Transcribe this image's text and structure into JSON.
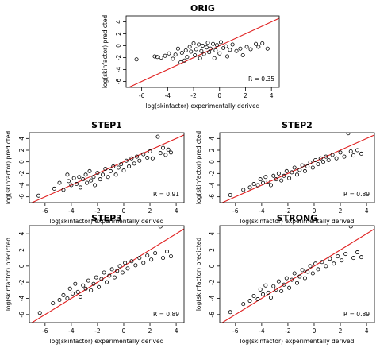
{
  "chart_data": [
    {
      "type": "scatter",
      "title": "ORIG",
      "xlabel": "log(skinfactor) experimentally derived",
      "ylabel": "log(skinfactor) predicted",
      "annotation": "R = 0.35",
      "xticks": [
        -6,
        -4,
        -2,
        0,
        2,
        4
      ],
      "yticks": [
        -6,
        -4,
        -2,
        0,
        2,
        4
      ],
      "xlim": [
        -7.2,
        4.6
      ],
      "ylim": [
        -7.0,
        5.0
      ],
      "reference_line": {
        "type": "identity",
        "color": "#e02020"
      },
      "points": [
        [
          -6.4,
          -2.3
        ],
        [
          -5.0,
          -1.8
        ],
        [
          -4.8,
          -1.9
        ],
        [
          -4.5,
          -2.0
        ],
        [
          -4.2,
          -1.7
        ],
        [
          -3.9,
          -1.3
        ],
        [
          -3.6,
          -2.2
        ],
        [
          -3.4,
          -1.5
        ],
        [
          -3.2,
          -0.5
        ],
        [
          -3.0,
          -2.8
        ],
        [
          -2.9,
          -1.2
        ],
        [
          -2.7,
          -2.5
        ],
        [
          -2.6,
          -0.8
        ],
        [
          -2.5,
          -1.9
        ],
        [
          -2.3,
          -0.2
        ],
        [
          -2.2,
          -1.0
        ],
        [
          -2.0,
          0.4
        ],
        [
          -1.9,
          -1.6
        ],
        [
          -1.8,
          -0.6
        ],
        [
          -1.6,
          0.2
        ],
        [
          -1.5,
          -2.1
        ],
        [
          -1.4,
          -0.9
        ],
        [
          -1.3,
          0.0
        ],
        [
          -1.2,
          -1.4
        ],
        [
          -1.0,
          -0.3
        ],
        [
          -0.9,
          0.5
        ],
        [
          -0.8,
          -1.1
        ],
        [
          -0.7,
          -0.5
        ],
        [
          -0.5,
          0.3
        ],
        [
          -0.4,
          -2.1
        ],
        [
          -0.3,
          -0.8
        ],
        [
          -0.2,
          0.1
        ],
        [
          0.0,
          -1.3
        ],
        [
          0.1,
          0.6
        ],
        [
          0.3,
          -0.4
        ],
        [
          0.5,
          -0.1
        ],
        [
          0.6,
          -1.8
        ],
        [
          0.8,
          -0.7
        ],
        [
          1.0,
          0.2
        ],
        [
          1.3,
          -0.9
        ],
        [
          1.6,
          -0.5
        ],
        [
          1.8,
          -1.6
        ],
        [
          2.1,
          -0.2
        ],
        [
          2.4,
          -0.6
        ],
        [
          2.8,
          0.3
        ],
        [
          3.0,
          -0.2
        ],
        [
          3.3,
          0.4
        ],
        [
          3.7,
          -0.5
        ]
      ]
    },
    {
      "type": "scatter",
      "title": "STEP1",
      "xlabel": "log(skinfactor) experimentally derived",
      "ylabel": "log(skinfactor) predicted",
      "annotation": "R = 0.91",
      "xticks": [
        -6,
        -4,
        -2,
        0,
        2,
        4
      ],
      "yticks": [
        -6,
        -4,
        -2,
        0,
        2,
        4
      ],
      "xlim": [
        -7.2,
        4.6
      ],
      "ylim": [
        -7.0,
        5.0
      ],
      "reference_line": {
        "type": "identity",
        "color": "#e02020"
      },
      "points": [
        [
          -6.5,
          -5.8
        ],
        [
          -5.3,
          -4.6
        ],
        [
          -4.9,
          -3.6
        ],
        [
          -4.6,
          -4.8
        ],
        [
          -4.3,
          -2.2
        ],
        [
          -4.2,
          -3.3
        ],
        [
          -4.0,
          -4.0
        ],
        [
          -3.8,
          -2.8
        ],
        [
          -3.6,
          -3.8
        ],
        [
          -3.4,
          -2.6
        ],
        [
          -3.3,
          -4.4
        ],
        [
          -3.1,
          -3.0
        ],
        [
          -2.9,
          -2.2
        ],
        [
          -2.8,
          -3.6
        ],
        [
          -2.6,
          -1.6
        ],
        [
          -2.5,
          -3.2
        ],
        [
          -2.3,
          -2.6
        ],
        [
          -2.2,
          -4.0
        ],
        [
          -2.0,
          -1.9
        ],
        [
          -1.8,
          -3.0
        ],
        [
          -1.6,
          -2.2
        ],
        [
          -1.4,
          -1.2
        ],
        [
          -1.2,
          -2.6
        ],
        [
          -1.0,
          -1.6
        ],
        [
          -0.8,
          -0.8
        ],
        [
          -0.6,
          -2.2
        ],
        [
          -0.4,
          -1.0
        ],
        [
          -0.2,
          -0.4
        ],
        [
          0.0,
          -1.5
        ],
        [
          0.2,
          0.2
        ],
        [
          0.4,
          -0.8
        ],
        [
          0.6,
          0.6
        ],
        [
          0.8,
          -0.3
        ],
        [
          1.0,
          0.9
        ],
        [
          1.2,
          0.2
        ],
        [
          1.5,
          1.3
        ],
        [
          1.8,
          0.7
        ],
        [
          2.0,
          1.8
        ],
        [
          2.2,
          0.6
        ],
        [
          2.6,
          4.3
        ],
        [
          2.8,
          1.5
        ],
        [
          3.0,
          2.4
        ],
        [
          3.2,
          1.2
        ],
        [
          3.4,
          2.1
        ],
        [
          3.6,
          1.6
        ]
      ]
    },
    {
      "type": "scatter",
      "title": "STEP2",
      "xlabel": "log(skinfactor) experimentally derived",
      "ylabel": "log(skinfactor) predicted",
      "annotation": "R = 0.89",
      "xticks": [
        -6,
        -4,
        -2,
        0,
        2,
        4
      ],
      "yticks": [
        -6,
        -4,
        -2,
        0,
        2,
        4
      ],
      "xlim": [
        -7.2,
        4.6
      ],
      "ylim": [
        -7.0,
        5.0
      ],
      "reference_line": {
        "type": "identity",
        "color": "#e02020"
      },
      "points": [
        [
          -6.4,
          -5.7
        ],
        [
          -5.4,
          -4.8
        ],
        [
          -4.9,
          -4.4
        ],
        [
          -4.6,
          -3.8
        ],
        [
          -4.3,
          -4.0
        ],
        [
          -4.1,
          -3.0
        ],
        [
          -3.9,
          -3.6
        ],
        [
          -3.7,
          -2.6
        ],
        [
          -3.5,
          -3.4
        ],
        [
          -3.3,
          -4.0
        ],
        [
          -3.1,
          -2.4
        ],
        [
          -2.9,
          -3.0
        ],
        [
          -2.7,
          -2.0
        ],
        [
          -2.5,
          -3.2
        ],
        [
          -2.3,
          -2.4
        ],
        [
          -2.1,
          -1.6
        ],
        [
          -1.9,
          -2.8
        ],
        [
          -1.7,
          -1.8
        ],
        [
          -1.5,
          -1.0
        ],
        [
          -1.3,
          -2.2
        ],
        [
          -1.1,
          -1.4
        ],
        [
          -0.9,
          -0.6
        ],
        [
          -0.7,
          -1.6
        ],
        [
          -0.5,
          -0.8
        ],
        [
          -0.3,
          -0.1
        ],
        [
          -0.1,
          -1.0
        ],
        [
          0.1,
          0.3
        ],
        [
          0.3,
          -0.4
        ],
        [
          0.5,
          0.6
        ],
        [
          0.7,
          0.0
        ],
        [
          0.9,
          0.9
        ],
        [
          1.1,
          0.3
        ],
        [
          1.4,
          1.2
        ],
        [
          1.7,
          0.6
        ],
        [
          2.0,
          1.6
        ],
        [
          2.3,
          0.9
        ],
        [
          2.6,
          4.9
        ],
        [
          2.8,
          1.8
        ],
        [
          3.0,
          1.1
        ],
        [
          3.3,
          2.0
        ],
        [
          3.6,
          1.4
        ]
      ]
    },
    {
      "type": "scatter",
      "title": "STEP3",
      "xlabel": "log(skinfactor) experimentally derived",
      "ylabel": "log(skinfactor) predicted",
      "annotation": "R = 0.89",
      "xticks": [
        -6,
        -4,
        -2,
        0,
        2,
        4
      ],
      "yticks": [
        -6,
        -4,
        -2,
        0,
        2,
        4
      ],
      "xlim": [
        -7.2,
        4.6
      ],
      "ylim": [
        -7.0,
        5.0
      ],
      "reference_line": {
        "type": "identity",
        "color": "#e02020"
      },
      "points": [
        [
          -6.4,
          -5.8
        ],
        [
          -5.4,
          -4.6
        ],
        [
          -4.9,
          -4.2
        ],
        [
          -4.6,
          -3.6
        ],
        [
          -4.3,
          -4.0
        ],
        [
          -4.1,
          -2.8
        ],
        [
          -3.9,
          -3.4
        ],
        [
          -3.7,
          -2.2
        ],
        [
          -3.5,
          -3.2
        ],
        [
          -3.3,
          -3.8
        ],
        [
          -3.1,
          -2.4
        ],
        [
          -2.9,
          -2.8
        ],
        [
          -2.7,
          -1.8
        ],
        [
          -2.5,
          -3.0
        ],
        [
          -2.3,
          -2.2
        ],
        [
          -2.1,
          -1.4
        ],
        [
          -1.9,
          -2.6
        ],
        [
          -1.7,
          -1.6
        ],
        [
          -1.5,
          -0.8
        ],
        [
          -1.3,
          -2.0
        ],
        [
          -1.1,
          -1.2
        ],
        [
          -0.9,
          -0.4
        ],
        [
          -0.7,
          -1.4
        ],
        [
          -0.5,
          -0.6
        ],
        [
          -0.3,
          0.0
        ],
        [
          -0.1,
          -0.8
        ],
        [
          0.1,
          0.4
        ],
        [
          0.3,
          -0.3
        ],
        [
          0.6,
          0.6
        ],
        [
          0.9,
          0.1
        ],
        [
          1.2,
          1.0
        ],
        [
          1.5,
          0.4
        ],
        [
          1.8,
          1.3
        ],
        [
          2.1,
          0.8
        ],
        [
          2.4,
          1.6
        ],
        [
          2.8,
          4.9
        ],
        [
          3.0,
          1.0
        ],
        [
          3.3,
          1.8
        ],
        [
          3.6,
          1.2
        ]
      ]
    },
    {
      "type": "scatter",
      "title": "STRONG",
      "xlabel": "log(skinfactor) experimentally derived",
      "ylabel": "log(skinfactor) predicted",
      "annotation": "R = 0.89",
      "xticks": [
        -6,
        -4,
        -2,
        0,
        2,
        4
      ],
      "yticks": [
        -6,
        -4,
        -2,
        0,
        2,
        4
      ],
      "xlim": [
        -7.2,
        4.6
      ],
      "ylim": [
        -7.0,
        5.0
      ],
      "reference_line": {
        "type": "identity",
        "color": "#e02020"
      },
      "points": [
        [
          -6.4,
          -5.7
        ],
        [
          -5.4,
          -4.7
        ],
        [
          -4.9,
          -4.3
        ],
        [
          -4.6,
          -3.7
        ],
        [
          -4.3,
          -4.1
        ],
        [
          -4.1,
          -2.9
        ],
        [
          -3.9,
          -3.5
        ],
        [
          -3.7,
          -2.4
        ],
        [
          -3.5,
          -3.3
        ],
        [
          -3.3,
          -3.9
        ],
        [
          -3.1,
          -2.5
        ],
        [
          -2.9,
          -2.9
        ],
        [
          -2.7,
          -1.9
        ],
        [
          -2.5,
          -3.1
        ],
        [
          -2.3,
          -2.3
        ],
        [
          -2.1,
          -1.5
        ],
        [
          -1.9,
          -2.7
        ],
        [
          -1.7,
          -1.7
        ],
        [
          -1.5,
          -0.9
        ],
        [
          -1.3,
          -2.1
        ],
        [
          -1.1,
          -1.3
        ],
        [
          -0.9,
          -0.5
        ],
        [
          -0.7,
          -1.5
        ],
        [
          -0.5,
          -0.7
        ],
        [
          -0.3,
          0.0
        ],
        [
          -0.1,
          -0.9
        ],
        [
          0.1,
          0.3
        ],
        [
          0.3,
          -0.4
        ],
        [
          0.6,
          0.5
        ],
        [
          0.9,
          0.0
        ],
        [
          1.2,
          0.9
        ],
        [
          1.5,
          0.3
        ],
        [
          1.8,
          1.2
        ],
        [
          2.1,
          0.7
        ],
        [
          2.4,
          1.5
        ],
        [
          2.8,
          4.9
        ],
        [
          3.0,
          1.0
        ],
        [
          3.3,
          1.7
        ],
        [
          3.6,
          1.1
        ]
      ]
    }
  ]
}
